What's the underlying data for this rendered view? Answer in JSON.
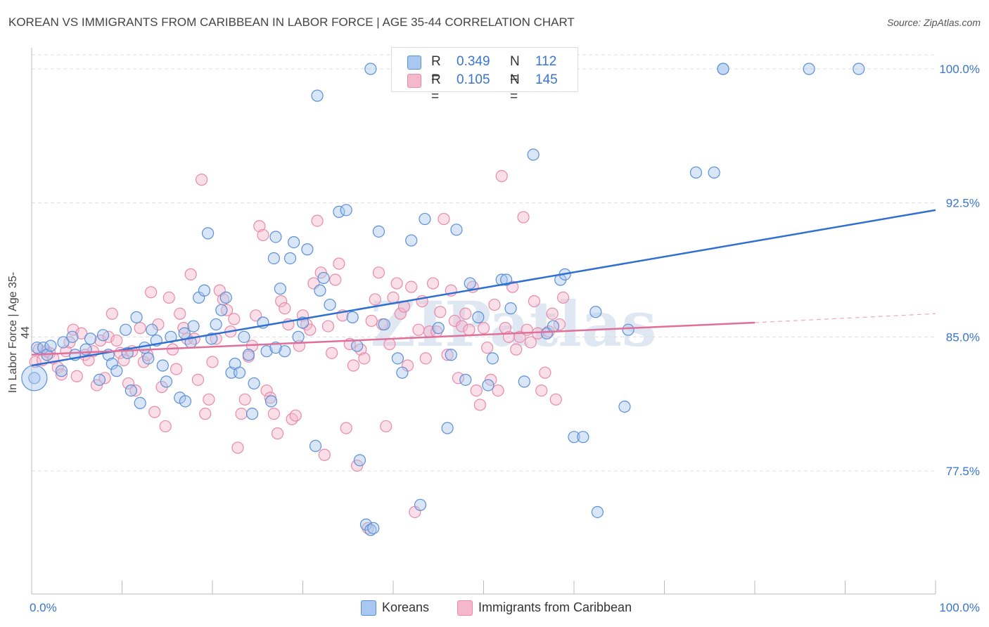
{
  "header": {
    "title": "KOREAN VS IMMIGRANTS FROM CARIBBEAN IN LABOR FORCE | AGE 35-44 CORRELATION CHART",
    "source": "Source: ZipAtlas.com"
  },
  "watermark": "ZIPatlas",
  "legend": {
    "rows": [
      {
        "r_label": "R =",
        "r_value": "0.349",
        "n_label": "N =",
        "n_value": "112"
      },
      {
        "r_label": "R =",
        "r_value": "0.105",
        "n_label": "N =",
        "n_value": "145"
      }
    ]
  },
  "colors": {
    "blue_fill": "#a9c8f0",
    "blue_stroke": "#5b8fd6",
    "blue_line": "#2e6fd0",
    "pink_fill": "#f5b7cb",
    "pink_stroke": "#e88aaa",
    "pink_line": "#e0709a",
    "axis_text": "#3a74cc",
    "grid": "#dddddd"
  },
  "chart_data": {
    "type": "scatter",
    "title": "KOREAN VS IMMIGRANTS FROM CARIBBEAN IN LABOR FORCE | AGE 35-44 CORRELATION CHART",
    "xlabel": "",
    "ylabel": "In Labor Force | Age 35-44",
    "x_range": [
      0,
      100
    ],
    "y_range": [
      71,
      100.7
    ],
    "x_ticks": [
      "0.0%",
      "100.0%"
    ],
    "y_ticks": [
      {
        "value": 100,
        "label": "100.0%"
      },
      {
        "value": 92.5,
        "label": "92.5%"
      },
      {
        "value": 85,
        "label": "85.0%"
      },
      {
        "value": 77.5,
        "label": "77.5%"
      }
    ],
    "grid": "horizontal dashed",
    "legend_position": "top-center",
    "series": [
      {
        "name": "Koreans",
        "trend": {
          "x": [
            0,
            100
          ],
          "y": [
            83.4,
            92.1
          ],
          "style": "solid"
        },
        "points": [
          [
            0.3,
            82.7
          ],
          [
            0.6,
            84.4
          ],
          [
            1.3,
            84.4
          ],
          [
            1.7,
            84.0
          ],
          [
            2.1,
            84.5
          ],
          [
            3.5,
            84.7
          ],
          [
            3.3,
            83.1
          ],
          [
            4.8,
            84.0
          ],
          [
            4.5,
            85.0
          ],
          [
            6.0,
            84.3
          ],
          [
            6.5,
            84.9
          ],
          [
            7.5,
            82.6
          ],
          [
            7.9,
            85.1
          ],
          [
            8.5,
            84.0
          ],
          [
            8.9,
            83.5
          ],
          [
            9.4,
            83.1
          ],
          [
            10.4,
            85.4
          ],
          [
            10.6,
            84.1
          ],
          [
            11.0,
            82.0
          ],
          [
            11.6,
            86.1
          ],
          [
            12.0,
            81.3
          ],
          [
            12.5,
            84.4
          ],
          [
            12.9,
            83.8
          ],
          [
            13.3,
            85.4
          ],
          [
            13.8,
            84.8
          ],
          [
            14.5,
            83.4
          ],
          [
            14.9,
            82.5
          ],
          [
            15.4,
            85.0
          ],
          [
            16.4,
            81.6
          ],
          [
            16.9,
            85.2
          ],
          [
            17.6,
            84.7
          ],
          [
            17.9,
            85.6
          ],
          [
            18.5,
            87.2
          ],
          [
            19.1,
            87.6
          ],
          [
            19.5,
            90.8
          ],
          [
            19.9,
            84.9
          ],
          [
            20.4,
            85.7
          ],
          [
            21.0,
            86.5
          ],
          [
            21.5,
            87.2
          ],
          [
            22.1,
            83.0
          ],
          [
            22.5,
            83.5
          ],
          [
            23.0,
            83.0
          ],
          [
            23.5,
            85.0
          ],
          [
            24.0,
            84.0
          ],
          [
            24.4,
            80.7
          ],
          [
            24.6,
            82.4
          ],
          [
            25.6,
            85.8
          ],
          [
            26.0,
            84.2
          ],
          [
            26.5,
            81.4
          ],
          [
            26.8,
            89.4
          ],
          [
            27.0,
            90.6
          ],
          [
            27.5,
            87.7
          ],
          [
            28.0,
            84.2
          ],
          [
            28.6,
            89.4
          ],
          [
            29.0,
            90.3
          ],
          [
            29.5,
            85.0
          ],
          [
            30.0,
            85.8
          ],
          [
            30.5,
            89.9
          ],
          [
            31.4,
            78.9
          ],
          [
            31.9,
            87.6
          ],
          [
            32.3,
            88.3
          ],
          [
            31.6,
            98.5
          ],
          [
            34.0,
            92.0
          ],
          [
            34.8,
            92.1
          ],
          [
            35.5,
            86.1
          ],
          [
            36.3,
            78.1
          ],
          [
            36.0,
            84.5
          ],
          [
            37.0,
            74.5
          ],
          [
            37.5,
            74.2
          ],
          [
            38.4,
            90.9
          ],
          [
            39.0,
            85.7
          ],
          [
            40.5,
            83.8
          ],
          [
            42.0,
            90.4
          ],
          [
            43.5,
            91.6
          ],
          [
            46.0,
            79.9
          ],
          [
            46.4,
            84.0
          ],
          [
            47.0,
            91.0
          ],
          [
            48.5,
            88.0
          ],
          [
            49.4,
            86.1
          ],
          [
            50.5,
            82.3
          ],
          [
            51.0,
            83.8
          ],
          [
            52.0,
            88.2
          ],
          [
            52.5,
            88.2
          ],
          [
            53.0,
            86.6
          ],
          [
            54.5,
            82.5
          ],
          [
            55.5,
            95.2
          ],
          [
            57.0,
            85.2
          ],
          [
            57.7,
            85.6
          ],
          [
            58.5,
            88.2
          ],
          [
            59.0,
            88.5
          ],
          [
            60.0,
            79.4
          ],
          [
            61.0,
            79.4
          ],
          [
            62.4,
            86.4
          ],
          [
            62.6,
            75.2
          ],
          [
            65.6,
            81.1
          ],
          [
            66.0,
            85.4
          ],
          [
            73.5,
            94.2
          ],
          [
            75.5,
            94.2
          ],
          [
            76.5,
            100
          ],
          [
            37.5,
            100
          ],
          [
            58.5,
            100
          ],
          [
            76.5,
            100
          ],
          [
            86.0,
            100
          ],
          [
            91.5,
            100
          ],
          [
            43.0,
            75.6
          ],
          [
            37.8,
            74.3
          ],
          [
            17.0,
            81.4
          ],
          [
            27.0,
            84.4
          ],
          [
            45.0,
            85.5
          ],
          [
            33.0,
            86.8
          ],
          [
            48.0,
            82.6
          ],
          [
            41.0,
            83.0
          ]
        ]
      },
      {
        "name": "Immigrants from Caribbean",
        "trend": {
          "x": [
            0,
            80
          ],
          "y": [
            84.0,
            85.8
          ],
          "style": "solid",
          "extension": {
            "x": [
              80,
              100
            ],
            "y": [
              85.8,
              86.3
            ],
            "style": "dashed"
          }
        },
        "points": [
          [
            0.4,
            83.6
          ],
          [
            0.8,
            84.3
          ],
          [
            1.2,
            83.7
          ],
          [
            1.6,
            84.2
          ],
          [
            2.0,
            84.1
          ],
          [
            2.4,
            83.8
          ],
          [
            2.9,
            83.3
          ],
          [
            3.3,
            82.9
          ],
          [
            3.8,
            84.2
          ],
          [
            4.2,
            84.7
          ],
          [
            4.6,
            85.4
          ],
          [
            5.0,
            82.8
          ],
          [
            5.5,
            85.2
          ],
          [
            5.9,
            84.0
          ],
          [
            6.3,
            83.7
          ],
          [
            6.8,
            84.2
          ],
          [
            7.2,
            82.3
          ],
          [
            7.6,
            84.8
          ],
          [
            8.1,
            82.7
          ],
          [
            8.5,
            85.0
          ],
          [
            8.9,
            86.3
          ],
          [
            9.4,
            84.8
          ],
          [
            9.8,
            84.1
          ],
          [
            10.2,
            83.7
          ],
          [
            10.7,
            82.4
          ],
          [
            11.1,
            84.2
          ],
          [
            11.5,
            82.0
          ],
          [
            12.0,
            85.5
          ],
          [
            12.4,
            83.6
          ],
          [
            12.8,
            84.0
          ],
          [
            13.2,
            87.5
          ],
          [
            13.6,
            80.8
          ],
          [
            14.0,
            85.7
          ],
          [
            14.4,
            82.2
          ],
          [
            14.8,
            80.0
          ],
          [
            15.2,
            87.2
          ],
          [
            15.6,
            84.3
          ],
          [
            16.0,
            83.2
          ],
          [
            16.4,
            86.3
          ],
          [
            16.8,
            85.5
          ],
          [
            17.2,
            84.9
          ],
          [
            17.6,
            88.5
          ],
          [
            18.0,
            84.9
          ],
          [
            18.4,
            82.6
          ],
          [
            18.8,
            93.8
          ],
          [
            19.2,
            80.7
          ],
          [
            19.6,
            81.5
          ],
          [
            20.0,
            83.6
          ],
          [
            20.4,
            84.9
          ],
          [
            20.8,
            87.6
          ],
          [
            21.2,
            87.1
          ],
          [
            21.6,
            86.5
          ],
          [
            22.0,
            85.3
          ],
          [
            22.4,
            86.0
          ],
          [
            22.8,
            78.8
          ],
          [
            23.2,
            80.7
          ],
          [
            23.6,
            81.5
          ],
          [
            24.0,
            83.9
          ],
          [
            24.4,
            84.5
          ],
          [
            24.8,
            86.2
          ],
          [
            25.2,
            91.2
          ],
          [
            25.6,
            90.7
          ],
          [
            26.0,
            82.0
          ],
          [
            26.4,
            81.6
          ],
          [
            26.8,
            80.7
          ],
          [
            27.2,
            79.6
          ],
          [
            27.6,
            87.0
          ],
          [
            28.0,
            86.6
          ],
          [
            28.4,
            85.7
          ],
          [
            28.8,
            80.4
          ],
          [
            29.2,
            80.6
          ],
          [
            29.6,
            84.5
          ],
          [
            30.0,
            86.2
          ],
          [
            30.4,
            85.7
          ],
          [
            30.8,
            85.4
          ],
          [
            31.2,
            88.0
          ],
          [
            31.6,
            91.5
          ],
          [
            32.0,
            88.6
          ],
          [
            32.4,
            78.4
          ],
          [
            32.8,
            85.6
          ],
          [
            33.2,
            84.1
          ],
          [
            33.6,
            88.2
          ],
          [
            34.0,
            89.1
          ],
          [
            34.4,
            86.2
          ],
          [
            34.8,
            79.9
          ],
          [
            35.2,
            84.6
          ],
          [
            35.6,
            83.4
          ],
          [
            36.0,
            77.8
          ],
          [
            36.4,
            84.3
          ],
          [
            36.8,
            83.8
          ],
          [
            37.2,
            74.3
          ],
          [
            37.6,
            85.9
          ],
          [
            38.0,
            87.1
          ],
          [
            38.4,
            88.6
          ],
          [
            38.8,
            85.7
          ],
          [
            39.2,
            80.0
          ],
          [
            39.6,
            84.6
          ],
          [
            40.0,
            87.2
          ],
          [
            40.4,
            88.0
          ],
          [
            40.8,
            86.3
          ],
          [
            41.2,
            86.7
          ],
          [
            41.6,
            83.4
          ],
          [
            42.0,
            87.8
          ],
          [
            42.4,
            75.2
          ],
          [
            42.8,
            85.4
          ],
          [
            43.2,
            87.0
          ],
          [
            43.6,
            83.8
          ],
          [
            44.0,
            85.3
          ],
          [
            44.4,
            88.0
          ],
          [
            44.8,
            85.3
          ],
          [
            45.2,
            86.4
          ],
          [
            45.6,
            91.6
          ],
          [
            46.0,
            84.0
          ],
          [
            46.4,
            87.6
          ],
          [
            46.8,
            85.9
          ],
          [
            47.2,
            82.7
          ],
          [
            47.6,
            85.6
          ],
          [
            48.0,
            86.3
          ],
          [
            48.4,
            85.4
          ],
          [
            48.8,
            87.8
          ],
          [
            49.2,
            82.0
          ],
          [
            49.6,
            81.2
          ],
          [
            50.0,
            85.5
          ],
          [
            50.4,
            84.4
          ],
          [
            50.8,
            82.6
          ],
          [
            51.2,
            86.8
          ],
          [
            51.6,
            82.0
          ],
          [
            52.0,
            94.0
          ],
          [
            52.4,
            85.5
          ],
          [
            52.8,
            85.0
          ],
          [
            53.2,
            87.8
          ],
          [
            53.6,
            84.3
          ],
          [
            54.0,
            85.0
          ],
          [
            54.4,
            91.7
          ],
          [
            54.8,
            85.4
          ],
          [
            55.2,
            84.7
          ],
          [
            55.6,
            87.0
          ],
          [
            56.0,
            85.2
          ],
          [
            56.4,
            82.0
          ],
          [
            56.8,
            83.0
          ],
          [
            57.2,
            85.3
          ],
          [
            57.6,
            86.3
          ],
          [
            58.0,
            81.5
          ],
          [
            58.4,
            85.7
          ],
          [
            58.8,
            87.2
          ]
        ]
      }
    ]
  },
  "bottom_legend": [
    {
      "label": "Koreans"
    },
    {
      "label": "Immigrants from Caribbean"
    }
  ]
}
